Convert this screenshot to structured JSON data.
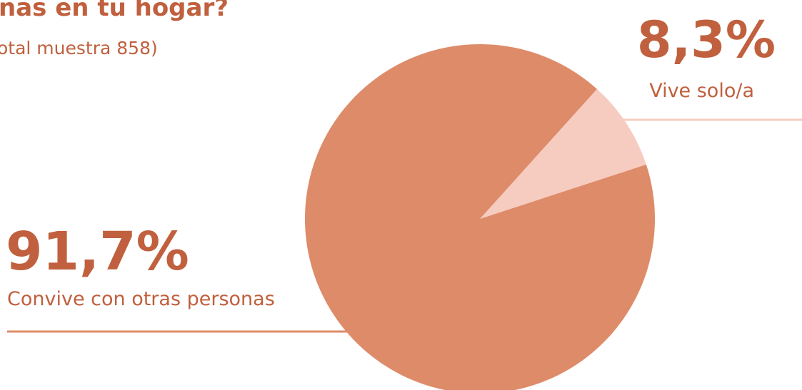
{
  "chart_data": {
    "type": "pie",
    "title": "nas en tu hogar?",
    "subtitle": "otal muestra 858)",
    "slices": [
      {
        "label": "Vive solo/a",
        "value": 8.3,
        "value_label": "8,3%",
        "color": "#F6CCC0"
      },
      {
        "label": "Convive con otras personas",
        "value": 91.7,
        "value_label": "91,7%",
        "color": "#DE8B69"
      }
    ]
  },
  "colors": {
    "text": "#C0603E",
    "pie_main": "#DE8B69",
    "pie_minor": "#F6CCC0",
    "leader_line_left": "#DE8B69",
    "leader_line_right": "#F6CCC0"
  }
}
